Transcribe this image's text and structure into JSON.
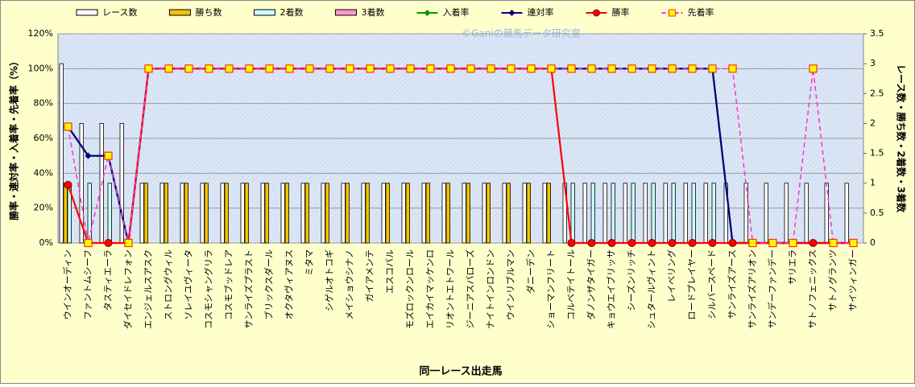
{
  "chart_data": {
    "type": "combo",
    "watermark": "©Ganiの競馬データ研究室",
    "x_label": "同一レース出走馬",
    "y_label": "勝率・連対率・入着率・先着率（%）",
    "y2_label": "レース数・勝ち数・2着数・3着数",
    "categories": [
      "ウインオーディン",
      "ファントムシーフ",
      "タスティエーラ",
      "ダイセイドレフォン",
      "エンジェルスアスク",
      "ストロングウィル",
      "ソレイユヴィータ",
      "コスモシャングリラ",
      "コスモブッドレア",
      "サンライズプラスト",
      "ブリックスダール",
      "オクタヴィアヌス",
      "ミタマ",
      "シゲルオトコギ",
      "メイショウシナノ",
      "ガイアメンテ",
      "エスコバル",
      "モズロックンロール",
      "エイカイマッケンロ",
      "リオントエトワール",
      "ジーニアスバローズ",
      "ナイトインロンドン",
      "ウインリブルマン",
      "ダニーデン",
      "ショーマンフリート",
      "コルベテイトール",
      "ダノンザタイガー",
      "キョウエイブリッサ",
      "シーズンリッチ",
      "シュタールヴィント",
      "レイベリング",
      "ロードプレイヤー",
      "シルバースペード",
      "サンライズアース",
      "サンライズアリオン",
      "サンデーファンデー",
      "サリエラ",
      "サトノフェニックス",
      "サトノグランツ",
      "サイツィンガー"
    ],
    "series": [
      {
        "name": "レース数",
        "mark": "bar",
        "axis": "y2",
        "color": "#ffffff",
        "values": [
          3,
          2,
          2,
          2,
          1,
          1,
          1,
          1,
          1,
          1,
          1,
          1,
          1,
          1,
          1,
          1,
          1,
          1,
          1,
          1,
          1,
          1,
          1,
          1,
          1,
          1,
          1,
          1,
          1,
          1,
          1,
          1,
          1,
          1,
          1,
          1,
          1,
          1,
          1,
          1
        ]
      },
      {
        "name": "勝ち数",
        "mark": "bar",
        "axis": "y2",
        "color": "#f5c400",
        "values": [
          1,
          0,
          0,
          0,
          1,
          1,
          1,
          1,
          1,
          1,
          1,
          1,
          1,
          1,
          1,
          1,
          1,
          1,
          1,
          1,
          1,
          1,
          1,
          1,
          1,
          0,
          0,
          0,
          0,
          0,
          0,
          0,
          0,
          0,
          0,
          0,
          0,
          0,
          0,
          0
        ]
      },
      {
        "name": "2着数",
        "mark": "bar",
        "axis": "y2",
        "color": "#ccffff",
        "values": [
          1,
          1,
          1,
          0,
          0,
          0,
          0,
          0,
          0,
          0,
          0,
          0,
          0,
          0,
          0,
          0,
          0,
          0,
          0,
          0,
          0,
          0,
          0,
          0,
          0,
          1,
          1,
          1,
          1,
          1,
          1,
          1,
          1,
          0,
          0,
          0,
          0,
          0,
          0,
          0
        ]
      },
      {
        "name": "3着数",
        "mark": "bar",
        "axis": "y2",
        "color": "#ff99cc",
        "values": [
          0,
          0,
          0,
          0,
          0,
          0,
          0,
          0,
          0,
          0,
          0,
          0,
          0,
          0,
          0,
          0,
          0,
          0,
          0,
          0,
          0,
          0,
          0,
          0,
          0,
          0,
          0,
          0,
          0,
          0,
          0,
          0,
          0,
          0,
          0,
          0,
          0,
          0,
          0,
          0
        ]
      },
      {
        "name": "入着率",
        "mark": "line",
        "marker": "diamond",
        "color": "#009900",
        "values": [
          66.7,
          50,
          50,
          0,
          100,
          100,
          100,
          100,
          100,
          100,
          100,
          100,
          100,
          100,
          100,
          100,
          100,
          100,
          100,
          100,
          100,
          100,
          100,
          100,
          100,
          100,
          100,
          100,
          100,
          100,
          100,
          100,
          100,
          0,
          0,
          0,
          0,
          0,
          0,
          0
        ]
      },
      {
        "name": "連対率",
        "mark": "line",
        "marker": "diamond",
        "color": "#000080",
        "values": [
          66.7,
          50,
          50,
          0,
          100,
          100,
          100,
          100,
          100,
          100,
          100,
          100,
          100,
          100,
          100,
          100,
          100,
          100,
          100,
          100,
          100,
          100,
          100,
          100,
          100,
          100,
          100,
          100,
          100,
          100,
          100,
          100,
          100,
          0,
          0,
          0,
          0,
          0,
          0,
          0
        ]
      },
      {
        "name": "勝率",
        "mark": "line",
        "marker": "circle",
        "color": "#ff0000",
        "values": [
          33.3,
          0,
          0,
          0,
          100,
          100,
          100,
          100,
          100,
          100,
          100,
          100,
          100,
          100,
          100,
          100,
          100,
          100,
          100,
          100,
          100,
          100,
          100,
          100,
          100,
          0,
          0,
          0,
          0,
          0,
          0,
          0,
          0,
          0,
          0,
          0,
          0,
          0,
          0,
          0
        ]
      },
      {
        "name": "先着率",
        "mark": "line",
        "marker": "square",
        "dash": true,
        "color": "#ff33cc",
        "values": [
          66.7,
          0,
          50,
          0,
          100,
          100,
          100,
          100,
          100,
          100,
          100,
          100,
          100,
          100,
          100,
          100,
          100,
          100,
          100,
          100,
          100,
          100,
          100,
          100,
          100,
          100,
          100,
          100,
          100,
          100,
          100,
          100,
          100,
          100,
          0,
          0,
          0,
          100,
          0,
          0
        ]
      }
    ],
    "ylim": [
      0,
      120
    ],
    "yticks": [
      {
        "value": 0,
        "label": "0%"
      },
      {
        "value": 20,
        "label": "20%"
      },
      {
        "value": 40,
        "label": "40%"
      },
      {
        "value": 60,
        "label": "60%"
      },
      {
        "value": 80,
        "label": "80%"
      },
      {
        "value": 100,
        "label": "100%"
      },
      {
        "value": 120,
        "label": "120%"
      }
    ],
    "y2lim": [
      0,
      3.5
    ],
    "y2ticks": [
      0,
      0.5,
      1,
      1.5,
      2,
      2.5,
      3,
      3.5
    ],
    "grid": true
  }
}
